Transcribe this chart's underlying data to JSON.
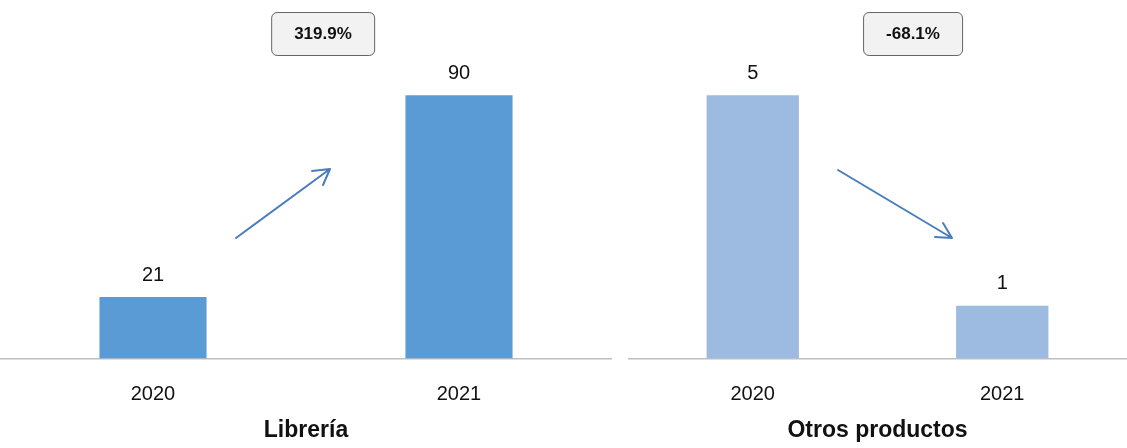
{
  "chart_data": [
    {
      "type": "bar",
      "xlabel": "Librería",
      "categories": [
        "2020",
        "2021"
      ],
      "values": [
        21,
        90
      ],
      "color": "#5b9bd5",
      "data_labels": true,
      "grid": false,
      "legend": false,
      "annotations": [
        "319.9%"
      ]
    },
    {
      "type": "bar",
      "xlabel": "Otros productos",
      "categories": [
        "2020",
        "2021"
      ],
      "values": [
        5,
        1
      ],
      "color": "#9dbbe1",
      "data_labels": true,
      "grid": false,
      "legend": false,
      "annotations": [
        "-68.1%"
      ]
    }
  ]
}
